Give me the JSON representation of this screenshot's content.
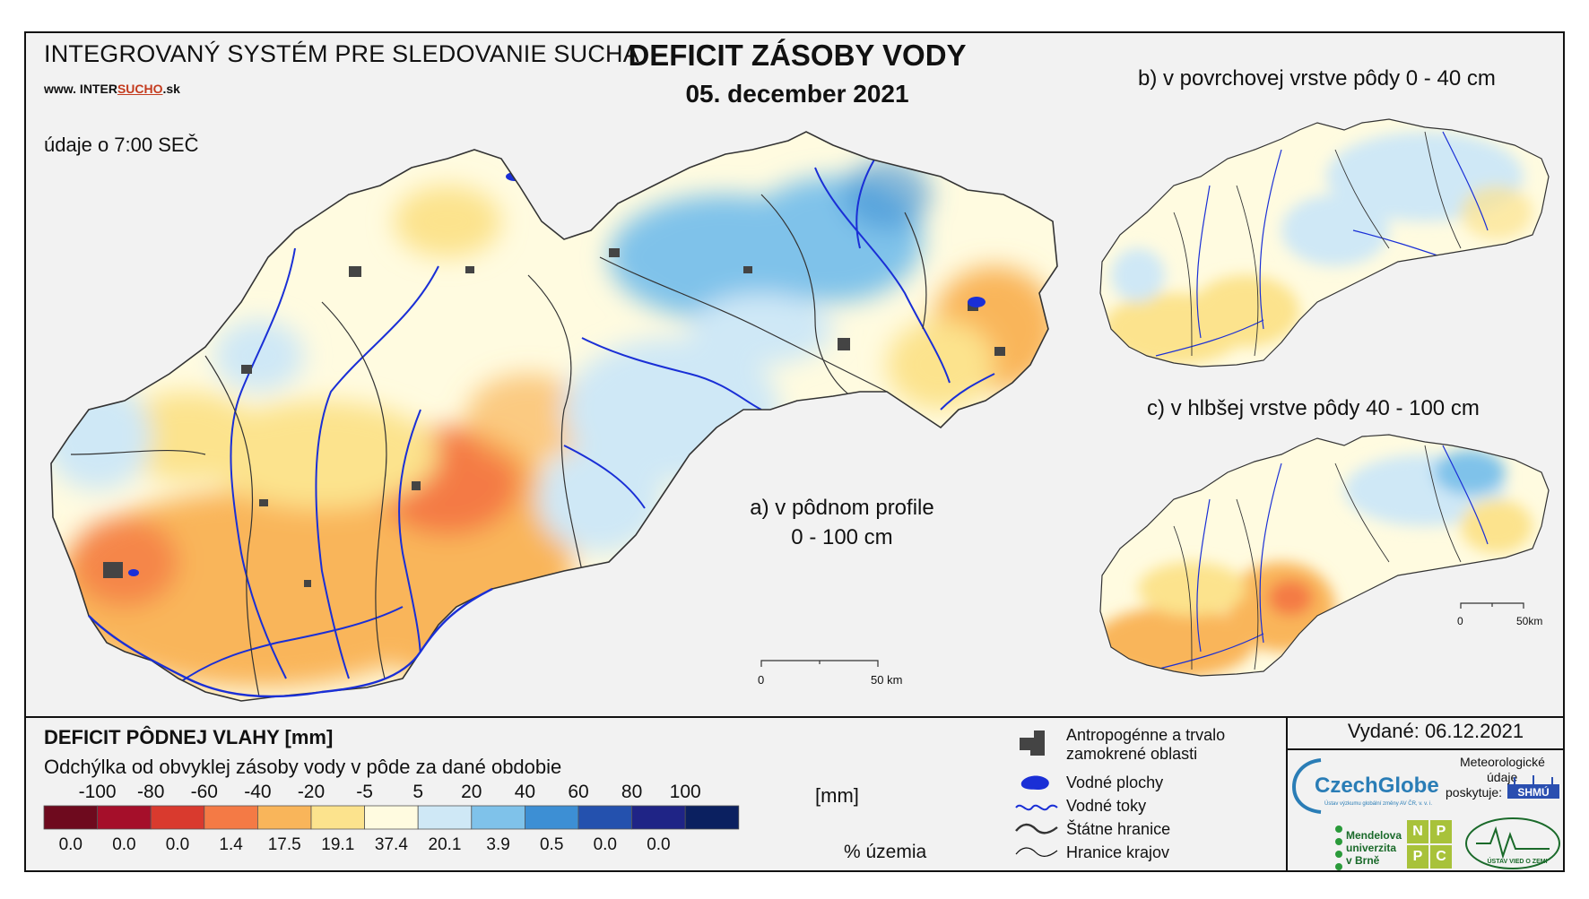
{
  "header": {
    "system_title": "INTEGROVANÝ SYSTÉM PRE SLEDOVANIE SUCHA",
    "website_prefix": "www. INTER",
    "website_highlight": "SUCHO",
    "website_suffix": ".sk",
    "observation_time": "údaje o 7:00 SEČ",
    "main_title": "DEFICIT ZÁSOBY VODY",
    "date": "05. december 2021"
  },
  "panels": {
    "a_line1": "a) v pôdnom profile",
    "a_line2": "0 - 100 cm",
    "b": "b) v povrchovej vrstve pôdy 0 - 40 cm",
    "c": "c) v hlbšej vrstve pôdy 40 - 100 cm"
  },
  "scale_bars": {
    "main_start": "0",
    "main_end": "50 km",
    "small_start": "0",
    "small_end": "50km"
  },
  "legend": {
    "title": "DEFICIT PÔDNEJ VLAHY [mm]",
    "subtitle": "Odchýlka od obvyklej zásoby vody v pôde za dané obdobie",
    "unit": "[mm]",
    "percent_label": "% územia",
    "class_bounds": [
      "-100",
      "-80",
      "-60",
      "-40",
      "-20",
      "-5",
      "5",
      "20",
      "40",
      "60",
      "80",
      "100"
    ],
    "colors": [
      "#6e0a1e",
      "#a50f2a",
      "#d93a2e",
      "#f47a45",
      "#f9b55a",
      "#fce38d",
      "#fffbe0",
      "#cfe8f6",
      "#7fc2ea",
      "#3d8fd4",
      "#2451ae",
      "#1f2486",
      "#0b2060"
    ],
    "percentages": [
      "0.0",
      "0.0",
      "0.0",
      "1.4",
      "17.5",
      "19.1",
      "37.4",
      "20.1",
      "3.9",
      "0.5",
      "0.0",
      "0.0",
      ""
    ]
  },
  "symbols": {
    "anthropogenic_line1": "Antropogénne a trvalo",
    "anthropogenic_line2": "zamokrené oblasti",
    "water_bodies": "Vodné plochy",
    "water_courses": "Vodné toky",
    "state_borders": "Štátne hranice",
    "region_borders": "Hranice krajov"
  },
  "credits": {
    "issued": "Vydané: 06.12.2021",
    "czechglobe": "CzechGlobe",
    "czechglobe_sub": "Ústav výzkumu globální změny AV ČR, v. v. i.",
    "meteo_line1": "Meteorologické",
    "meteo_line2": "údaje",
    "meteo_line3": "poskytuje:",
    "shmu": "SHMÚ",
    "mendel_line1": "Mendelova",
    "mendel_line2": "univerzita",
    "mendel_line3": "v Brně",
    "npp_1": "N",
    "npp_2": "P",
    "npp_3": "P",
    "npp_4": "C",
    "uvz": "ÚSTAV VIED O ZEMI"
  }
}
